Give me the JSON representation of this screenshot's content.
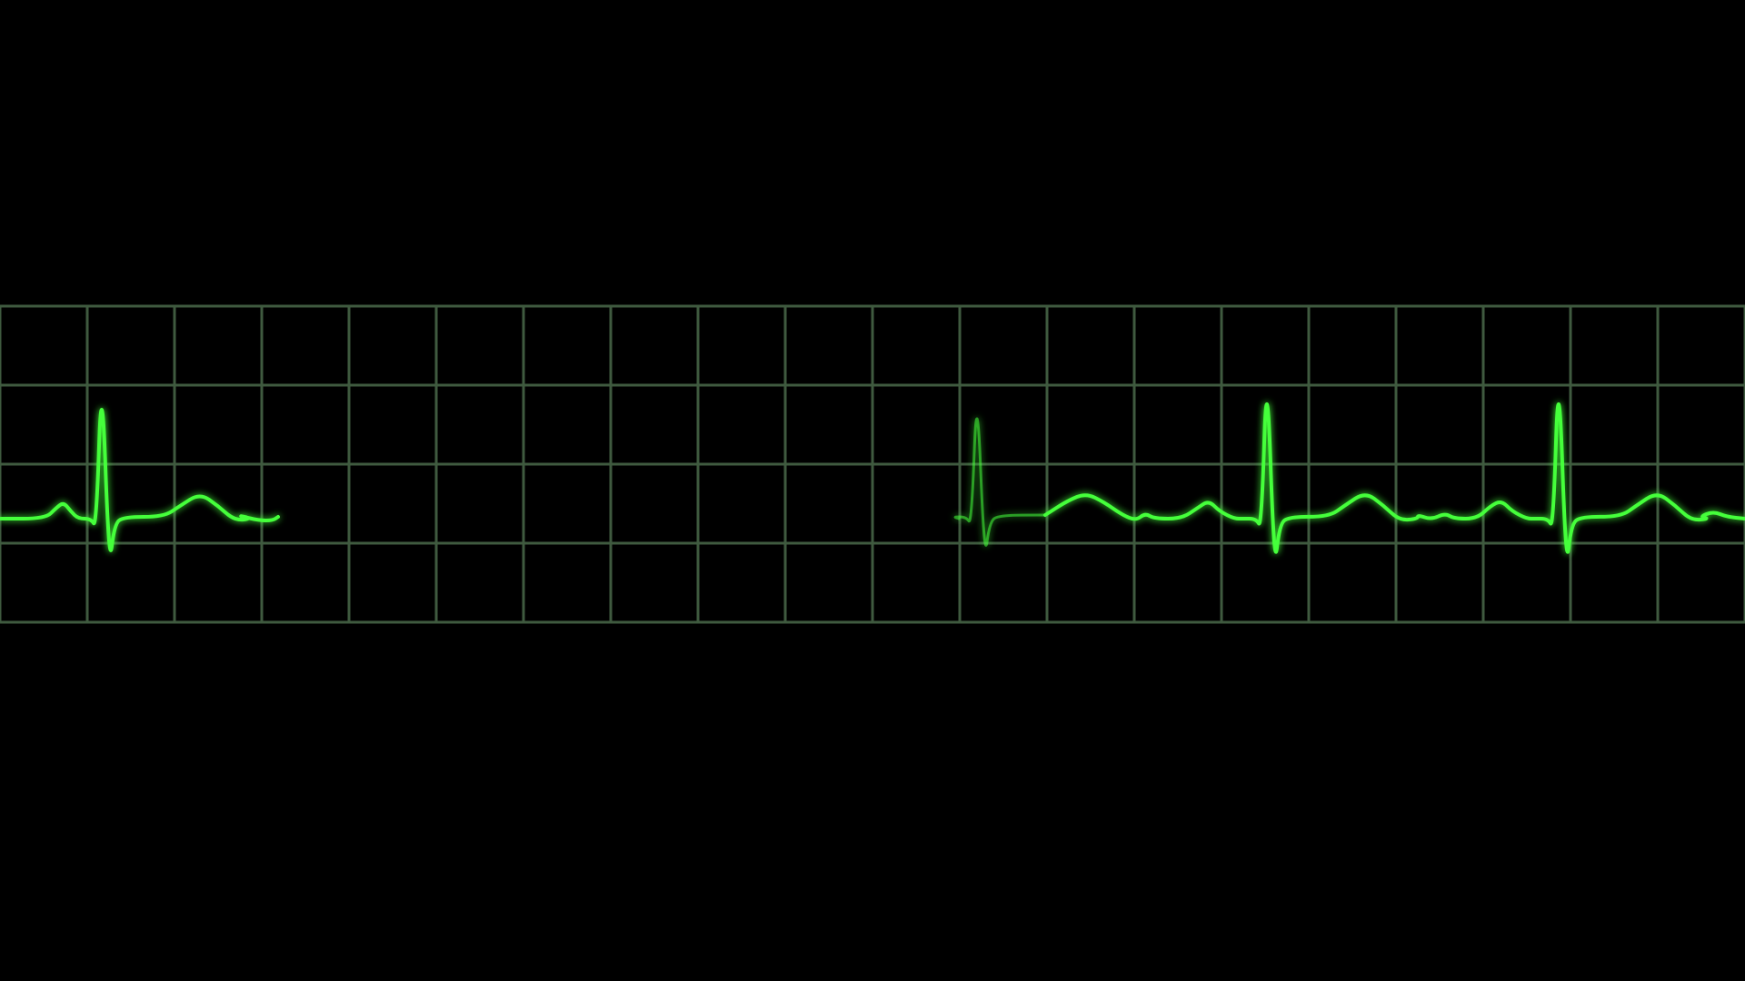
{
  "colors": {
    "background": "#000000",
    "grid": "#3f5a3f",
    "trace": "#45ff3a",
    "trace_glow": "#1fbf1f"
  },
  "grid": {
    "columns": 20,
    "rows": 4
  },
  "trace": {
    "beats_visible": 4,
    "faded_beats": 1,
    "has_sweep_gap": true
  }
}
